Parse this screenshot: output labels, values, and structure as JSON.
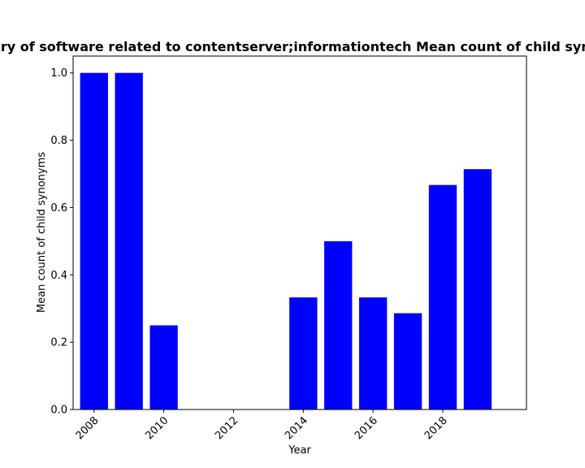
{
  "chart_data": {
    "type": "bar",
    "title": "Items in the category of software related to contentserver;informationtech Mean count of child synonyms in prior years",
    "xlabel": "Year",
    "ylabel": "Mean count of child synonyms",
    "x": [
      2008,
      2009,
      2010,
      2014,
      2015,
      2016,
      2017,
      2018,
      2019
    ],
    "values": [
      1.0,
      1.0,
      0.25,
      0.333,
      0.5,
      0.333,
      0.286,
      0.667,
      0.714
    ],
    "xlim": [
      2007.4,
      2020.4
    ],
    "ylim": [
      0,
      1.05
    ],
    "xticks": [
      2008,
      2010,
      2012,
      2014,
      2016,
      2018
    ],
    "yticks": [
      0.0,
      0.2,
      0.4,
      0.6,
      0.8,
      1.0
    ],
    "bar_color": "#0000ff",
    "grid": false
  }
}
